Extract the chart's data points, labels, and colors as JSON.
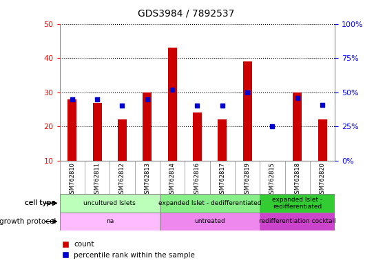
{
  "title": "GDS3984 / 7892537",
  "samples": [
    "GSM762810",
    "GSM762811",
    "GSM762812",
    "GSM762813",
    "GSM762814",
    "GSM762816",
    "GSM762817",
    "GSM762819",
    "GSM762815",
    "GSM762818",
    "GSM762820"
  ],
  "counts": [
    28,
    27,
    22,
    30,
    43,
    24,
    22,
    39,
    10,
    30,
    22
  ],
  "percentiles": [
    45,
    45,
    40,
    45,
    52,
    40,
    40,
    50,
    25,
    46,
    41
  ],
  "ylim_left": [
    10,
    50
  ],
  "ylim_right": [
    0,
    100
  ],
  "yticks_left": [
    10,
    20,
    30,
    40,
    50
  ],
  "yticks_right": [
    0,
    25,
    50,
    75,
    100
  ],
  "bar_color": "#cc0000",
  "dot_color": "#0000cc",
  "groups": [
    {
      "label": "uncultured Islets",
      "start": 0,
      "end": 4,
      "color": "#aaffaa"
    },
    {
      "label": "expanded Islet - dedifferentiated",
      "start": 4,
      "end": 8,
      "color": "#66ee66"
    },
    {
      "label": "expanded Islet -\nredifferentiated",
      "start": 8,
      "end": 11,
      "color": "#22cc22"
    }
  ],
  "protocols": [
    {
      "label": "na",
      "start": 0,
      "end": 4,
      "color": "#ffbbff"
    },
    {
      "label": "untreated",
      "start": 4,
      "end": 8,
      "color": "#ee88ee"
    },
    {
      "label": "redifferentiation cocktail",
      "start": 8,
      "end": 11,
      "color": "#dd44dd"
    }
  ],
  "cell_type_label": "cell type",
  "growth_protocol_label": "growth protocol",
  "legend_count": "count",
  "legend_percentile": "percentile rank within the sample",
  "background_color": "#ffffff",
  "xtick_area_color": "#cccccc"
}
